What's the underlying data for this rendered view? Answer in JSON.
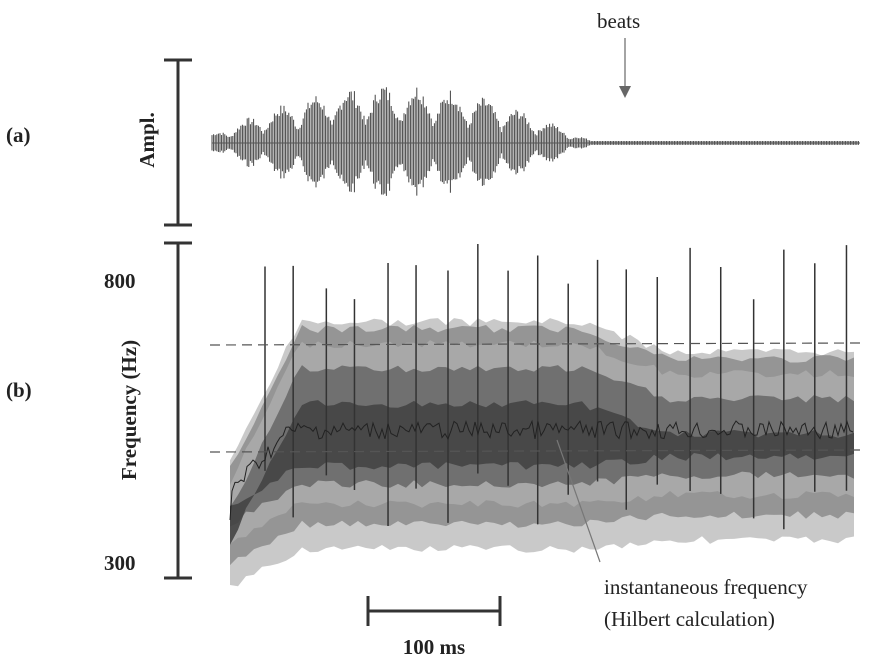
{
  "panel_a": {
    "label": "(a)",
    "axis_label": "Ampl.",
    "annotation": "beats"
  },
  "panel_b": {
    "label": "(b)",
    "axis_label": "Frequency (Hz)",
    "tick_labels": [
      "800",
      "300"
    ],
    "annotation": [
      "instantaneous frequency",
      "(Hilbert calculation)"
    ]
  },
  "scale_bar": "100 ms"
}
